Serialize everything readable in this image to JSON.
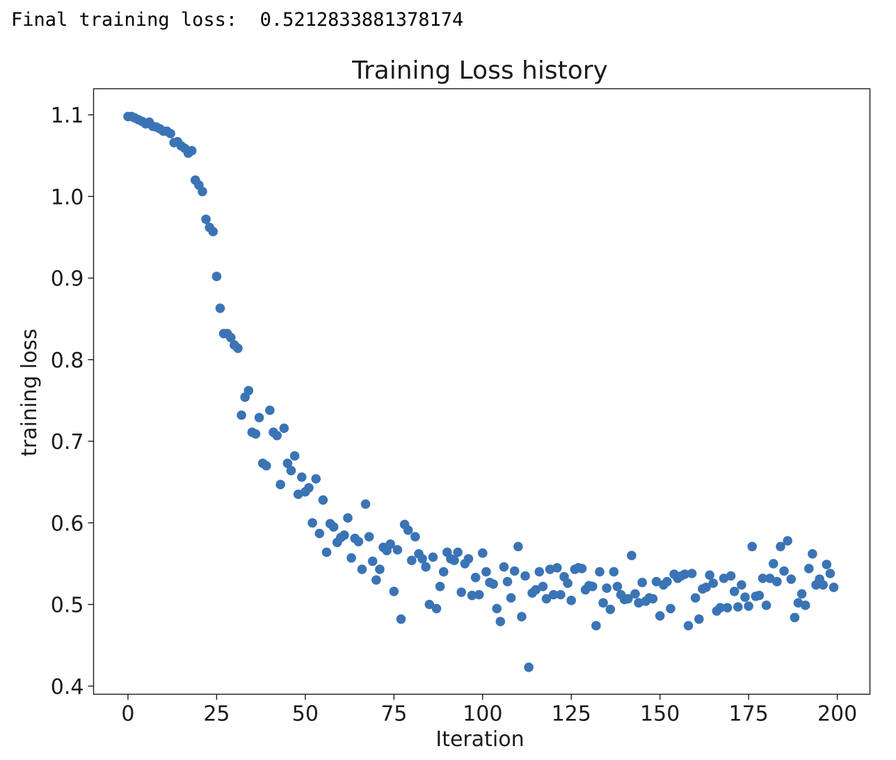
{
  "output": {
    "prefix": "Final training loss:  ",
    "value": "0.5212833881378174"
  },
  "chart_data": {
    "type": "scatter",
    "title": "Training Loss history",
    "xlabel": "Iteration",
    "ylabel": "training loss",
    "xlim": [
      -9.7,
      209.2
    ],
    "ylim": [
      0.39,
      1.132
    ],
    "xticks": [
      0,
      25,
      50,
      75,
      100,
      125,
      150,
      175,
      200
    ],
    "xtick_labels": [
      "0",
      "25",
      "50",
      "75",
      "100",
      "125",
      "150",
      "175",
      "200"
    ],
    "yticks": [
      0.4,
      0.5,
      0.6,
      0.7,
      0.8,
      0.9,
      1.0,
      1.1
    ],
    "ytick_labels": [
      "0.4",
      "0.5",
      "0.6",
      "0.7",
      "0.8",
      "0.9",
      "1.0",
      "1.1"
    ],
    "grid": false,
    "marker_color": "#3a74b5",
    "x": [
      0,
      1,
      2,
      3,
      4,
      5,
      6,
      7,
      8,
      9,
      10,
      11,
      12,
      13,
      14,
      15,
      16,
      17,
      18,
      19,
      20,
      21,
      22,
      23,
      24,
      25,
      26,
      27,
      28,
      29,
      30,
      31,
      32,
      33,
      34,
      35,
      36,
      37,
      38,
      39,
      40,
      41,
      42,
      43,
      44,
      45,
      46,
      47,
      48,
      49,
      50,
      51,
      52,
      53,
      54,
      55,
      56,
      57,
      58,
      59,
      60,
      61,
      62,
      63,
      64,
      65,
      66,
      67,
      68,
      69,
      70,
      71,
      72,
      73,
      74,
      75,
      76,
      77,
      78,
      79,
      80,
      81,
      82,
      83,
      84,
      85,
      86,
      87,
      88,
      89,
      90,
      91,
      92,
      93,
      94,
      95,
      96,
      97,
      98,
      99,
      100,
      101,
      102,
      103,
      104,
      105,
      106,
      107,
      108,
      109,
      110,
      111,
      112,
      113,
      114,
      115,
      116,
      117,
      118,
      119,
      120,
      121,
      122,
      123,
      124,
      125,
      126,
      127,
      128,
      129,
      130,
      131,
      132,
      133,
      134,
      135,
      136,
      137,
      138,
      139,
      140,
      141,
      142,
      143,
      144,
      145,
      146,
      147,
      148,
      149,
      150,
      151,
      152,
      153,
      154,
      155,
      156,
      157,
      158,
      159,
      160,
      161,
      162,
      163,
      164,
      165,
      166,
      167,
      168,
      169,
      170,
      171,
      172,
      173,
      174,
      175,
      176,
      177,
      178,
      179,
      180,
      181,
      182,
      183,
      184,
      185,
      186,
      187,
      188,
      189,
      190,
      191,
      192,
      193,
      194,
      195,
      196,
      197,
      198,
      199
    ],
    "y": [
      1.098,
      1.098,
      1.096,
      1.094,
      1.092,
      1.089,
      1.091,
      1.086,
      1.085,
      1.083,
      1.08,
      1.08,
      1.077,
      1.066,
      1.067,
      1.062,
      1.059,
      1.053,
      1.056,
      1.02,
      1.014,
      1.006,
      0.972,
      0.962,
      0.957,
      0.902,
      0.863,
      0.832,
      0.832,
      0.827,
      0.818,
      0.814,
      0.732,
      0.754,
      0.762,
      0.711,
      0.709,
      0.729,
      0.673,
      0.67,
      0.738,
      0.711,
      0.707,
      0.647,
      0.716,
      0.673,
      0.664,
      0.682,
      0.635,
      0.656,
      0.638,
      0.643,
      0.6,
      0.654,
      0.587,
      0.628,
      0.564,
      0.599,
      0.595,
      0.576,
      0.582,
      0.585,
      0.606,
      0.557,
      0.581,
      0.577,
      0.543,
      0.623,
      0.583,
      0.553,
      0.53,
      0.543,
      0.57,
      0.566,
      0.574,
      0.516,
      0.567,
      0.482,
      0.598,
      0.591,
      0.554,
      0.583,
      0.562,
      0.556,
      0.546,
      0.5,
      0.558,
      0.495,
      0.522,
      0.54,
      0.564,
      0.556,
      0.554,
      0.564,
      0.515,
      0.55,
      0.556,
      0.511,
      0.533,
      0.512,
      0.563,
      0.54,
      0.527,
      0.525,
      0.495,
      0.479,
      0.546,
      0.528,
      0.508,
      0.541,
      0.571,
      0.485,
      0.535,
      0.423,
      0.514,
      0.518,
      0.54,
      0.522,
      0.507,
      0.543,
      0.512,
      0.545,
      0.512,
      0.534,
      0.526,
      0.505,
      0.543,
      0.545,
      0.544,
      0.518,
      0.523,
      0.522,
      0.474,
      0.54,
      0.502,
      0.52,
      0.494,
      0.54,
      0.522,
      0.512,
      0.506,
      0.507,
      0.56,
      0.513,
      0.502,
      0.527,
      0.504,
      0.508,
      0.507,
      0.528,
      0.486,
      0.524,
      0.528,
      0.495,
      0.537,
      0.532,
      0.535,
      0.537,
      0.474,
      0.538,
      0.508,
      0.482,
      0.519,
      0.521,
      0.536,
      0.526,
      0.492,
      0.496,
      0.532,
      0.496,
      0.535,
      0.516,
      0.497,
      0.524,
      0.509,
      0.498,
      0.571,
      0.51,
      0.511,
      0.532,
      0.499,
      0.532,
      0.55,
      0.528,
      0.571,
      0.541,
      0.578,
      0.531,
      0.484,
      0.502,
      0.513,
      0.499,
      0.544,
      0.562,
      0.524,
      0.531,
      0.524,
      0.549,
      0.538,
      0.521
    ]
  }
}
